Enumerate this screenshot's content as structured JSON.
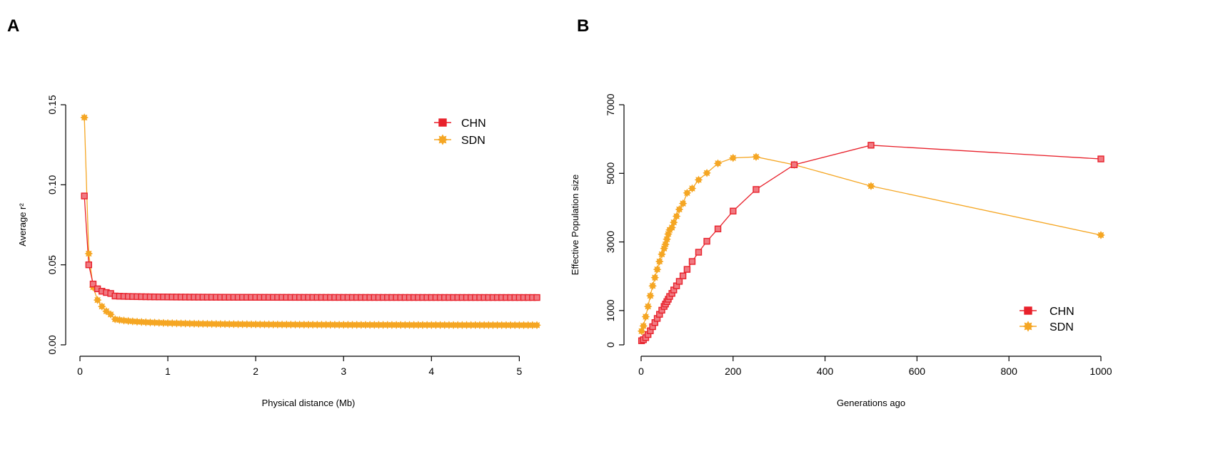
{
  "colors": {
    "CHN": "#e8212b",
    "SDN": "#f5a623",
    "CHN_marker_fill": "#f07a82"
  },
  "chart_data": [
    {
      "panel_label": "A",
      "type": "line",
      "title": "",
      "xlabel": "Physical distance (Mb)",
      "ylabel": "Average r²",
      "xlim": [
        0,
        5.2
      ],
      "ylim": [
        0,
        0.15
      ],
      "xticks": [
        0,
        1,
        2,
        3,
        4,
        5
      ],
      "xtick_labels": [
        "0",
        "1",
        "2",
        "3",
        "4",
        "5"
      ],
      "yticks": [
        0,
        0.05,
        0.1,
        0.15
      ],
      "ytick_labels": [
        "0.00",
        "0.05",
        "0.10",
        "0.15"
      ],
      "legend": {
        "placement": "top-right",
        "entries": [
          "CHN",
          "SDN"
        ]
      },
      "series": [
        {
          "name": "CHN",
          "marker": "square",
          "decay": {
            "x0": 0.05,
            "step": 0.05,
            "count": 104,
            "plateau": 0.0295,
            "tail_coef": 0.0004,
            "anchors": [
              [
                0.05,
                0.093
              ],
              [
                0.1,
                0.05
              ],
              [
                0.15,
                0.038
              ],
              [
                0.2,
                0.035
              ],
              [
                0.25,
                0.0335
              ],
              [
                0.3,
                0.0327
              ],
              [
                0.35,
                0.0321
              ]
            ]
          }
        },
        {
          "name": "SDN",
          "marker": "star",
          "decay": {
            "x0": 0.05,
            "step": 0.05,
            "count": 104,
            "plateau": 0.012,
            "tail_coef": 0.0016,
            "anchors": [
              [
                0.05,
                0.142
              ],
              [
                0.1,
                0.057
              ],
              [
                0.15,
                0.036
              ],
              [
                0.2,
                0.028
              ],
              [
                0.25,
                0.024
              ],
              [
                0.3,
                0.021
              ],
              [
                0.35,
                0.019
              ]
            ]
          }
        }
      ]
    },
    {
      "panel_label": "B",
      "type": "line",
      "title": "",
      "xlabel": "Generations ago",
      "ylabel": "Effective Population size",
      "xlim": [
        0,
        1000
      ],
      "ylim": [
        0,
        7000
      ],
      "xticks": [
        0,
        200,
        400,
        600,
        800,
        1000
      ],
      "xtick_labels": [
        "0",
        "200",
        "400",
        "600",
        "800",
        "1000"
      ],
      "yticks": [
        0,
        1000,
        3000,
        5000,
        7000
      ],
      "ytick_labels": [
        "0",
        "1000",
        "3000",
        "5000",
        "7000"
      ],
      "legend": {
        "placement": "bottom-right",
        "entries": [
          "CHN",
          "SDN"
        ]
      },
      "series": [
        {
          "name": "CHN",
          "marker": "square",
          "points": [
            [
              1000,
              5420
            ],
            [
              500,
              5820
            ],
            [
              333,
              5250
            ],
            [
              250,
              4530
            ],
            [
              200,
              3900
            ],
            [
              167,
              3380
            ],
            [
              143,
              3020
            ],
            [
              125,
              2700
            ],
            [
              111,
              2430
            ],
            [
              100,
              2200
            ],
            [
              91,
              2010
            ],
            [
              83,
              1850
            ],
            [
              77,
              1720
            ],
            [
              71,
              1600
            ],
            [
              67,
              1500
            ],
            [
              62,
              1410
            ],
            [
              59,
              1330
            ],
            [
              56,
              1260
            ],
            [
              53,
              1190
            ],
            [
              50,
              1120
            ],
            [
              45,
              1010
            ],
            [
              40,
              890
            ],
            [
              35,
              770
            ],
            [
              30,
              650
            ],
            [
              25,
              530
            ],
            [
              20,
              410
            ],
            [
              15,
              300
            ],
            [
              10,
              210
            ],
            [
              5,
              150
            ],
            [
              1,
              120
            ]
          ]
        },
        {
          "name": "SDN",
          "marker": "star",
          "points": [
            [
              1000,
              3200
            ],
            [
              500,
              4630
            ],
            [
              333,
              5250
            ],
            [
              250,
              5480
            ],
            [
              200,
              5450
            ],
            [
              167,
              5290
            ],
            [
              143,
              5010
            ],
            [
              125,
              4810
            ],
            [
              111,
              4560
            ],
            [
              100,
              4430
            ],
            [
              91,
              4120
            ],
            [
              83,
              3950
            ],
            [
              77,
              3750
            ],
            [
              71,
              3570
            ],
            [
              67,
              3420
            ],
            [
              62,
              3350
            ],
            [
              59,
              3230
            ],
            [
              56,
              3080
            ],
            [
              53,
              2930
            ],
            [
              50,
              2810
            ],
            [
              45,
              2640
            ],
            [
              40,
              2430
            ],
            [
              35,
              2200
            ],
            [
              30,
              1960
            ],
            [
              25,
              1720
            ],
            [
              20,
              1430
            ],
            [
              15,
              1120
            ],
            [
              10,
              820
            ],
            [
              5,
              550
            ],
            [
              1,
              400
            ]
          ]
        }
      ]
    }
  ]
}
